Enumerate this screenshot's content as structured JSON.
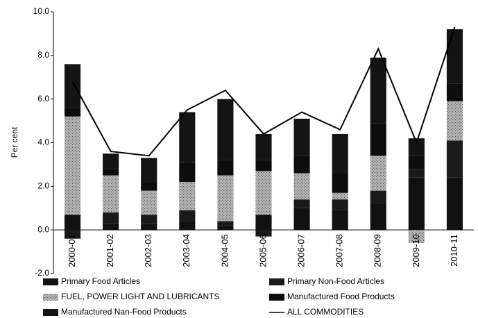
{
  "chart_data": {
    "type": "stacked-bar-line",
    "y_label": "Per cent",
    "categories": [
      "2000-01",
      "2001-02",
      "2002-03",
      "2003-04",
      "2004-05",
      "2005-06",
      "2006-07",
      "2007-08",
      "2008-09",
      "2009-10",
      "2010-11"
    ],
    "series": [
      {
        "name": "Primary Food Articles",
        "color": "#111111",
        "values": [
          0.7,
          0.3,
          0.3,
          0.4,
          0.2,
          0.7,
          1.0,
          0.9,
          1.2,
          2.4,
          2.4
        ]
      },
      {
        "name": "Primary Non-Food Articles",
        "color": "#1a1a1a",
        "values": [
          -0.4,
          0.5,
          0.4,
          0.5,
          0.2,
          -0.3,
          0.4,
          0.5,
          0.6,
          0.4,
          1.7
        ]
      },
      {
        "name": "FUEL, POWER LIGHT AND LUBRICANTS",
        "color": "#9a9a9a",
        "values": [
          4.5,
          1.7,
          1.1,
          1.3,
          2.1,
          2.0,
          1.2,
          0.3,
          1.6,
          -0.6,
          1.8
        ]
      },
      {
        "name": "Manufactured Food Products",
        "color": "#0d0d0d",
        "values": [
          0.4,
          0.3,
          0.4,
          0.9,
          0.7,
          0.5,
          0.8,
          0.9,
          1.5,
          0.6,
          0.8
        ]
      },
      {
        "name": "Manufactured Nan-Food Products",
        "color": "#141414",
        "values": [
          2.0,
          0.7,
          1.1,
          2.3,
          2.8,
          1.2,
          1.7,
          1.8,
          3.0,
          0.8,
          2.5
        ]
      }
    ],
    "line": {
      "name": "ALL COMMODITIES",
      "color": "#000000",
      "values": [
        6.8,
        3.6,
        3.4,
        5.5,
        6.4,
        4.4,
        5.4,
        4.6,
        8.3,
        4.0,
        9.3
      ]
    },
    "ylim": [
      -2,
      10
    ],
    "yticks": [
      {
        "value": -2,
        "label": "-2.0"
      },
      {
        "value": 0,
        "label": "0.0"
      },
      {
        "value": 2,
        "label": "2.0"
      },
      {
        "value": 4,
        "label": "4.0"
      },
      {
        "value": 6,
        "label": "6.0"
      },
      {
        "value": 8,
        "label": "8.0"
      },
      {
        "value": 10,
        "label": "10.0"
      }
    ]
  }
}
